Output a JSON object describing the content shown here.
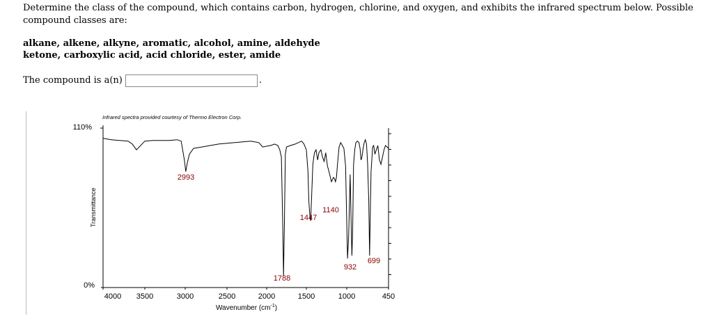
{
  "question": {
    "text": "Determine the class of the compound, which contains carbon, hydrogen, chlorine, and oxygen, and exhibits the infrared spectrum below. Possible compound classes are:",
    "classes_line1": "alkane, alkene, alkyne, aromatic, alcohol, amine, aldehyde",
    "classes_line2": "ketone, carboxylic acid, acid chloride, ester, amide",
    "answer_label": "The compound is a(n)",
    "answer_value": "",
    "answer_suffix": "."
  },
  "chart_data": {
    "type": "line",
    "credit": "Infrared spectra provided courtesy of Thermo Electron Corp.",
    "ylabel": "Transmittance",
    "xlabel": "Wavenumber (cm",
    "xlabel_sup": "-1",
    "xlabel_suffix": ")",
    "y_tick_labels": [
      "110%",
      "0%"
    ],
    "x_tick_labels": [
      "4000",
      "3500",
      "3000",
      "2500",
      "2000",
      "1500",
      "1000",
      "450"
    ],
    "peak_labels": [
      "2993",
      "1788",
      "1447",
      "1140",
      "932",
      "699"
    ],
    "colors": {
      "peak_label": "#8b0000",
      "line": "#000000"
    },
    "series": [
      {
        "x": [
          4000,
          3900,
          3800,
          3700,
          3650,
          3600,
          3500,
          3400,
          3200,
          3100,
          3050,
          3010,
          2993,
          2975,
          2950,
          2900,
          2800,
          2700,
          2600,
          2400,
          2200,
          2100,
          2050,
          1950,
          1900,
          1860,
          1835,
          1815,
          1800,
          1788,
          1776,
          1765,
          1750,
          1700,
          1640,
          1600,
          1560,
          1530,
          1500,
          1480,
          1470,
          1455,
          1447,
          1435,
          1420,
          1400,
          1380,
          1360,
          1345,
          1320,
          1300,
          1280,
          1260,
          1240,
          1220,
          1190,
          1165,
          1150,
          1140,
          1128,
          1115,
          1095,
          1075,
          1055,
          1035,
          1015,
          1000,
          990,
          975,
          955,
          940,
          932,
          922,
          910,
          895,
          880,
          860,
          840,
          825,
          812,
          800,
          785,
          770,
          755,
          740,
          725,
          710,
          699,
          690,
          680,
          670,
          660,
          645,
          630,
          610,
          590,
          570,
          550,
          530,
          510,
          490,
          470,
          450
        ],
        "y": [
          103,
          102,
          101.5,
          101,
          99,
          95,
          101,
          101.5,
          101.5,
          102,
          101,
          88,
          80,
          86,
          92,
          96,
          97,
          98,
          99,
          100,
          101,
          100,
          97,
          98,
          99,
          98,
          95,
          90,
          50,
          8,
          45,
          92,
          97,
          98,
          99,
          100,
          101,
          99,
          95,
          80,
          60,
          48,
          46,
          62,
          85,
          93,
          95,
          88,
          93,
          95,
          90,
          87,
          93,
          84,
          80,
          73,
          76,
          75,
          73,
          76,
          85,
          97,
          100,
          98,
          96,
          84,
          45,
          20,
          35,
          78,
          40,
          22,
          40,
          85,
          95,
          100,
          101,
          100,
          96,
          88,
          90,
          96,
          100,
          102,
          99,
          85,
          60,
          22,
          50,
          80,
          88,
          97,
          98,
          92,
          95,
          98,
          88,
          85,
          90,
          95,
          98,
          97,
          96
        ]
      }
    ],
    "xlim": [
      4000,
      450
    ],
    "ylim": [
      0,
      110
    ],
    "grid": false,
    "legend": "none"
  }
}
